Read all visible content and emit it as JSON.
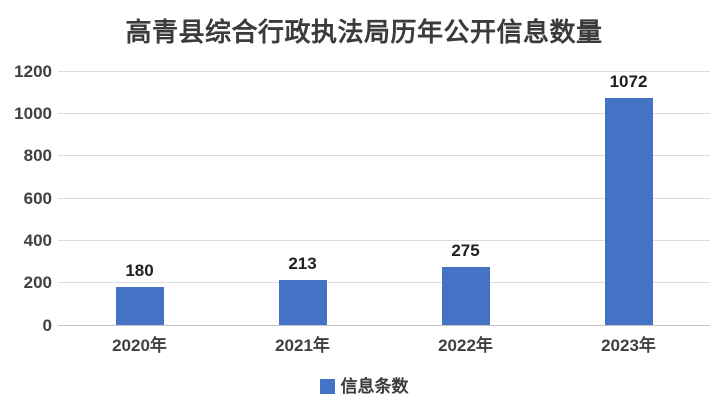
{
  "chart_data": {
    "type": "bar",
    "title": "高青县综合行政执法局历年公开信息数量",
    "categories": [
      "2020年",
      "2021年",
      "2022年",
      "2023年"
    ],
    "series": [
      {
        "name": "信息条数",
        "values": [
          180,
          213,
          275,
          1072
        ]
      }
    ],
    "data_labels": [
      "180",
      "213",
      "275",
      "1072"
    ],
    "ylabel": "",
    "xlabel": "",
    "ylim": [
      0,
      1200
    ],
    "yticks": [
      0,
      200,
      400,
      600,
      800,
      1000,
      1200
    ],
    "grid": true,
    "legend_position": "bottom"
  },
  "legend": {
    "label": "信息条数"
  },
  "colors": {
    "bar": "#4472C4",
    "gridline": "#dcdcdc",
    "axis_line": "#c3c3c3",
    "title_text": "#3b3b3b",
    "tick_text": "#404040",
    "data_label_text": "#1f1f1f",
    "background": "#ffffff"
  }
}
